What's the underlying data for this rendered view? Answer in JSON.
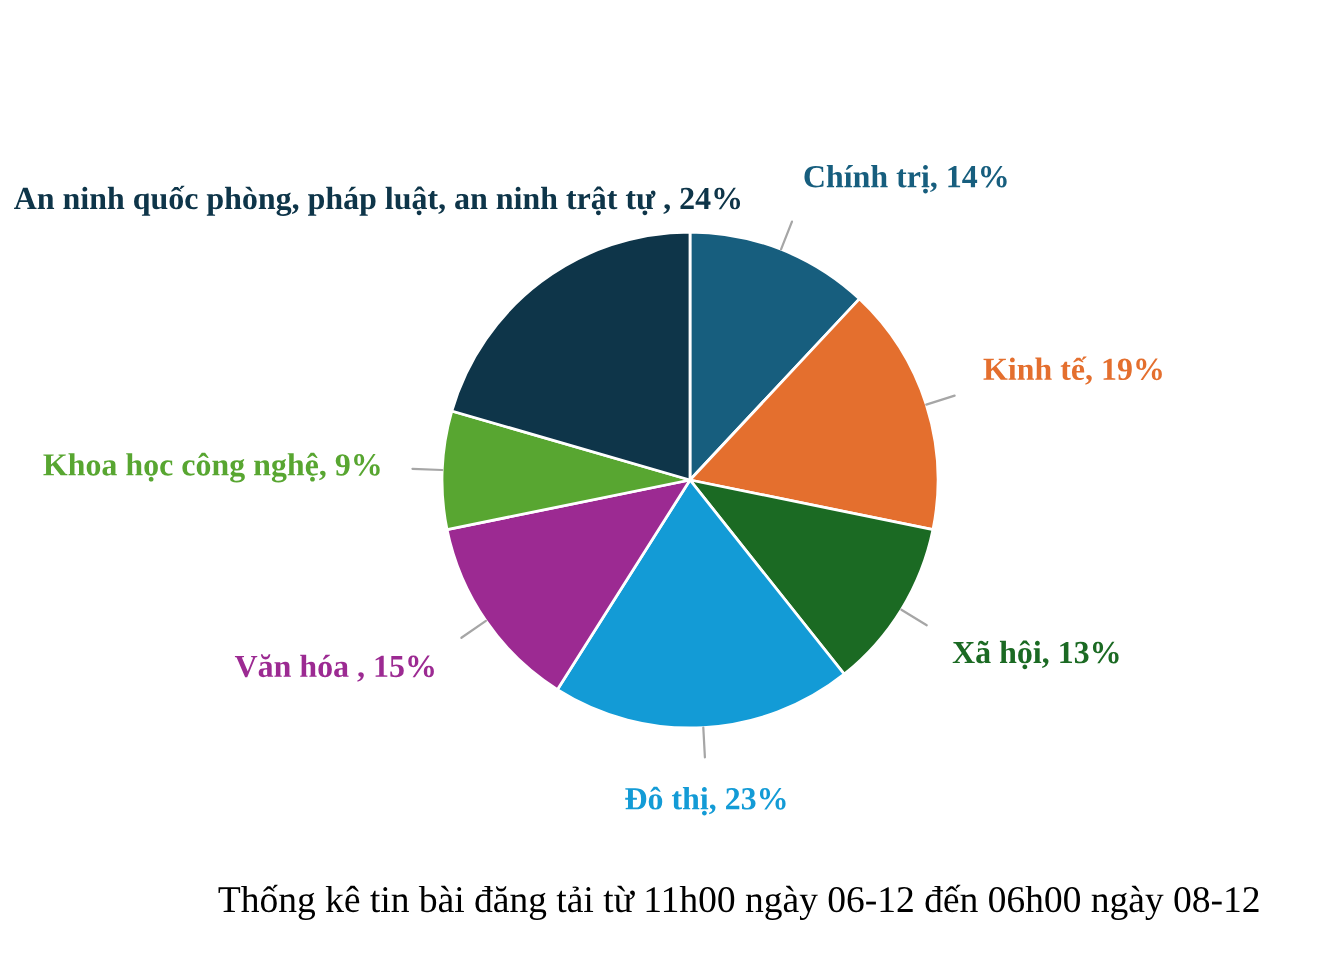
{
  "chart_data": {
    "type": "pie",
    "title": "Thống kê tin bài đăng tải từ 11h00 ngày 06-12 đến 06h00 ngày 08-12",
    "categories": [
      "Chính trị",
      "Kinh tế",
      "Xã hội",
      "Đô thị",
      "Văn hóa ",
      "Khoa học công nghệ",
      "An ninh quốc phòng, pháp luật, an ninh trật tự "
    ],
    "values": [
      14,
      19,
      13,
      23,
      15,
      9,
      24
    ],
    "value_labels": [
      "14%",
      "19%",
      "13%",
      "23%",
      "15%",
      "9%",
      "24%"
    ],
    "colors": [
      "#175e7e",
      "#e46f2e",
      "#1b6a23",
      "#139bd6",
      "#9c2a92",
      "#58a631",
      "#0e3549"
    ]
  }
}
